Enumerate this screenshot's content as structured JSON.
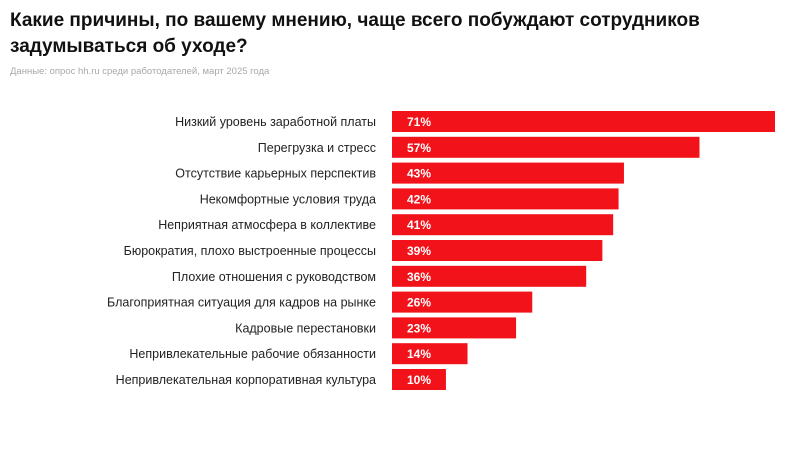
{
  "chart_data": {
    "type": "bar",
    "orientation": "horizontal",
    "title": "Какие причины, по вашему мнению, чаще всего побуждают сотрудников задумываться об уходе?",
    "subtitle": "Данные: опрос hh.ru среди работодателей, март 2025 года",
    "categories": [
      "Низкий уровень заработной платы",
      "Перегрузка и стресс",
      "Отсутствие карьерных перспектив",
      "Некомфортные условия труда",
      "Неприятная атмосфера в коллективе",
      "Бюрократия, плохо выстроенные процессы",
      "Плохие отношения с руководством",
      "Благоприятная ситуация для кадров на рынке",
      "Кадровые перестановки",
      "Непривлекательные рабочие обязанности",
      "Непривлекательная корпоративная культура"
    ],
    "values": [
      71,
      57,
      43,
      42,
      41,
      39,
      36,
      26,
      23,
      14,
      10
    ],
    "value_labels": [
      "71%",
      "57%",
      "43%",
      "42%",
      "41%",
      "39%",
      "36%",
      "26%",
      "23%",
      "14%",
      "10%"
    ],
    "unit": "%",
    "xlim": [
      0,
      71
    ],
    "bar_color": "#f2121a",
    "grid": false,
    "legend": "none"
  }
}
